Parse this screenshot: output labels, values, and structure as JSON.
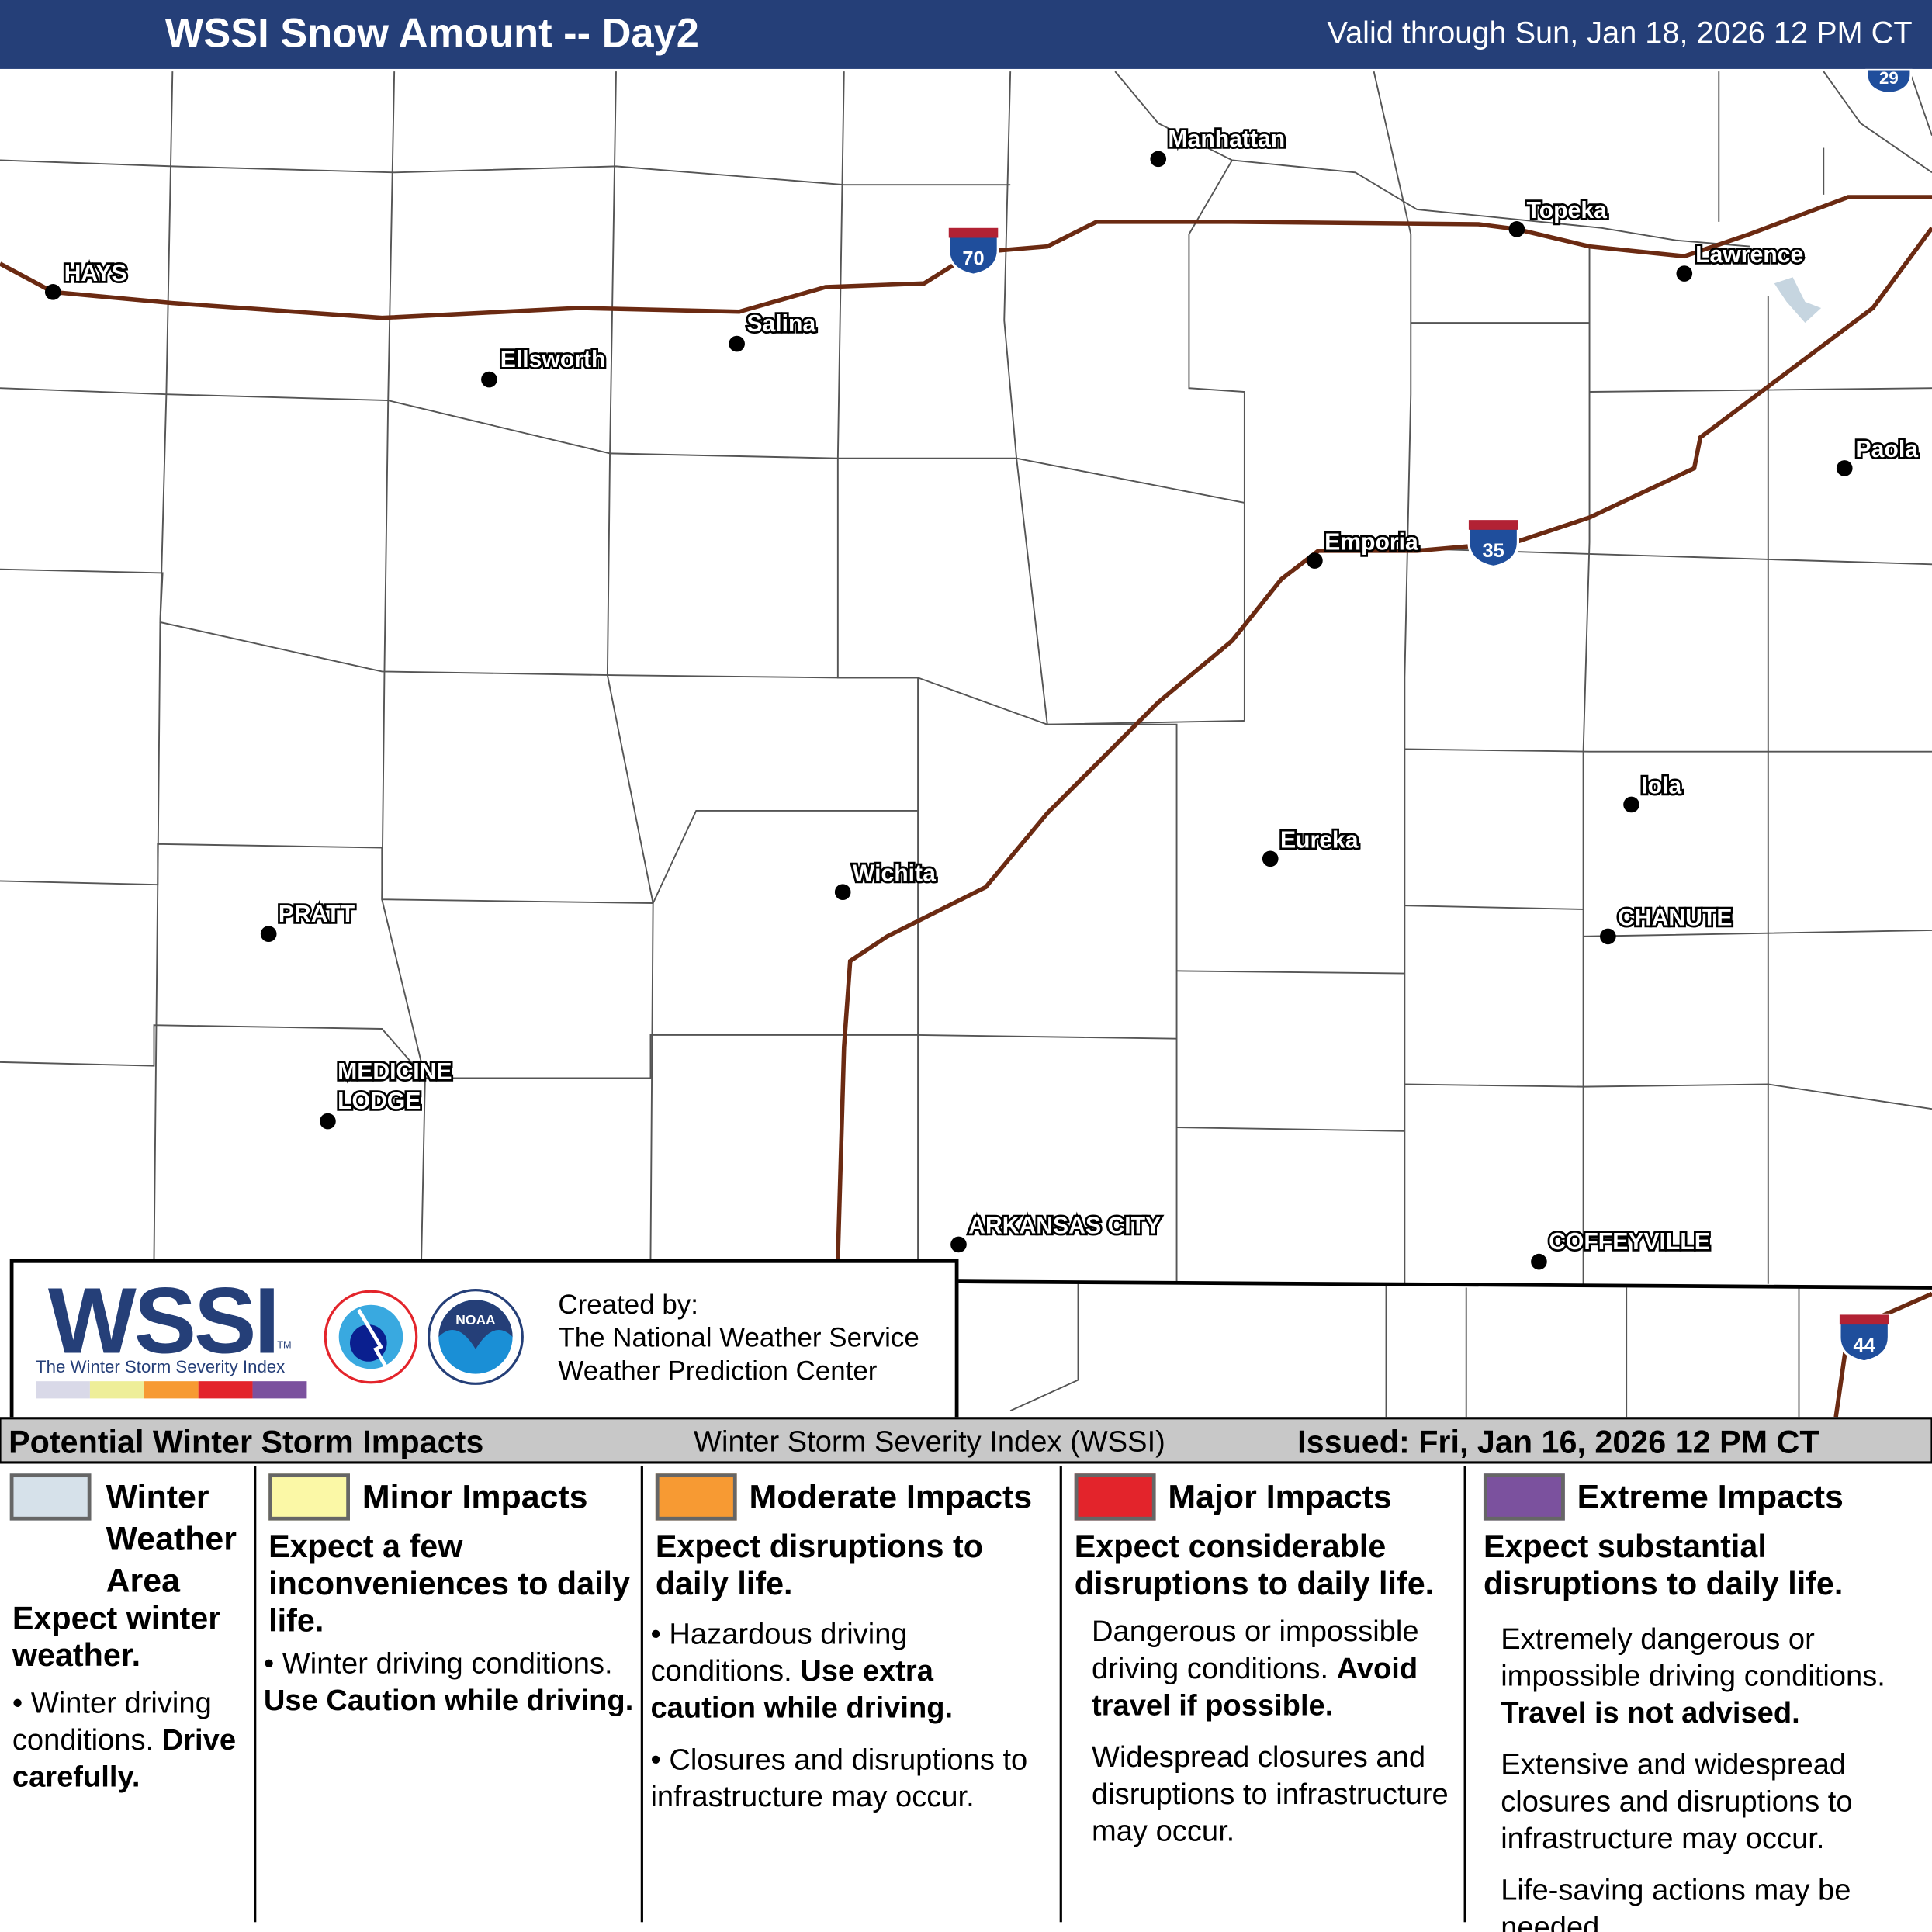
{
  "header": {
    "title": "WSSI Snow Amount -- Day2",
    "valid": "Valid through Sun, Jan 18, 2026 12 PM CT",
    "bg": "#253f78"
  },
  "map": {
    "cities": [
      {
        "name": "HAYS"
      },
      {
        "name": "Ellsworth"
      },
      {
        "name": "Salina"
      },
      {
        "name": "Manhattan"
      },
      {
        "name": "Topeka"
      },
      {
        "name": "Lawrence"
      },
      {
        "name": "Paola"
      },
      {
        "name": "Emporia"
      },
      {
        "name": "Iola"
      },
      {
        "name": "Eureka"
      },
      {
        "name": "Wichita"
      },
      {
        "name": "PRATT"
      },
      {
        "name": "CHANUTE"
      },
      {
        "name": "MEDICINE"
      },
      {
        "name": "LODGE"
      },
      {
        "name": "ARKANSAS CITY"
      },
      {
        "name": "COFFEYVILLE"
      }
    ],
    "shields": [
      "70",
      "35",
      "29",
      "44"
    ],
    "road_color": "#6b2a12"
  },
  "logo": {
    "wssi": "WSSI",
    "tm": "TM",
    "subtitle": "The Winter Storm Severity Index",
    "created": [
      "Created by:",
      "The National Weather Service",
      "Weather Prediction Center"
    ],
    "colors": [
      "#d9d9e8",
      "#eeee99",
      "#f79a33",
      "#e3242b",
      "#7b519e"
    ]
  },
  "legend": {
    "title": "Potential Winter Storm Impacts",
    "center": "Winter Storm Severity Index (WSSI)",
    "issued": "Issued: Fri, Jan 16, 2026 12 PM CT",
    "cats": [
      {
        "name": "Winter Weather Area",
        "color": "#d6e1ea",
        "lead": "Expect winter weather.",
        "body": "Winter driving conditions.",
        "bold": "Drive carefully."
      },
      {
        "name": "Minor Impacts",
        "color": "#fbf8a6",
        "lead": "Expect a few inconveniences to daily life.",
        "body": "Winter driving conditions.",
        "bold": "Use Caution while driving."
      },
      {
        "name": "Moderate Impacts",
        "color": "#f79a33",
        "lead": "Expect disruptions to daily life.",
        "body": "Hazardous driving conditions.",
        "bold": "Use extra caution while driving.",
        "extra": "Closures and disruptions to infrastructure may occur."
      },
      {
        "name": "Major Impacts",
        "color": "#e3242b",
        "lead": "Expect considerable disruptions to daily life.",
        "body": "Dangerous or impossible driving conditions.",
        "bold": "Avoid travel if possible.",
        "extra": "Widespread closures and disruptions to infrastructure may occur."
      },
      {
        "name": "Extreme Impacts",
        "color": "#7b519e",
        "lead": "Expect substantial disruptions to daily life.",
        "body": "Extremely dangerous or impossible driving conditions.",
        "bold": "Travel is not advised.",
        "extra": "Extensive and widespread closures and disruptions to infrastructure may occur.",
        "extra2": "Life-saving actions may be needed."
      }
    ]
  }
}
